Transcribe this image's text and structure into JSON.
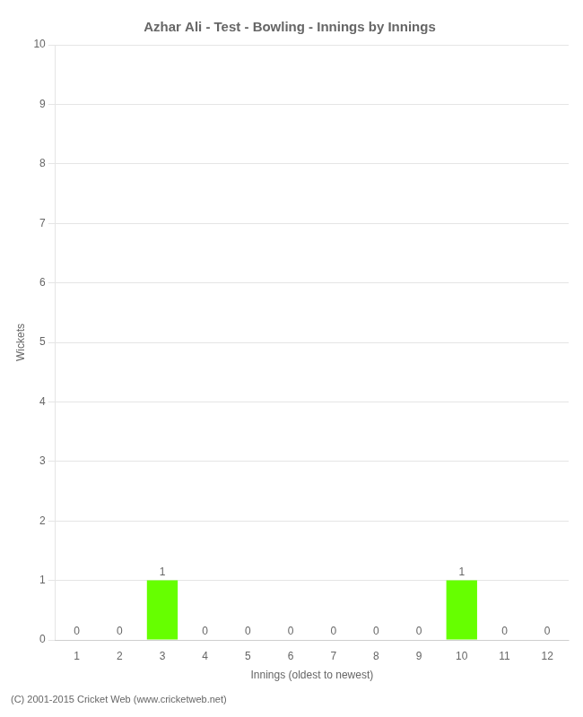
{
  "chart_data": {
    "type": "bar",
    "title": "Azhar Ali - Test - Bowling - Innings by Innings",
    "xlabel": "Innings (oldest to newest)",
    "ylabel": "Wickets",
    "categories": [
      1,
      2,
      3,
      4,
      5,
      6,
      7,
      8,
      9,
      10,
      11,
      12
    ],
    "values": [
      0,
      0,
      1,
      0,
      0,
      0,
      0,
      0,
      0,
      1,
      0,
      0
    ],
    "color": "#66ff00",
    "ylim": [
      0,
      10
    ],
    "yticks": [
      0,
      1,
      2,
      3,
      4,
      5,
      6,
      7,
      8,
      9,
      10
    ],
    "grid": true,
    "data_labels": true,
    "annotations": [
      "(C) 2001-2015 Cricket Web (www.cricketweb.net)"
    ]
  }
}
